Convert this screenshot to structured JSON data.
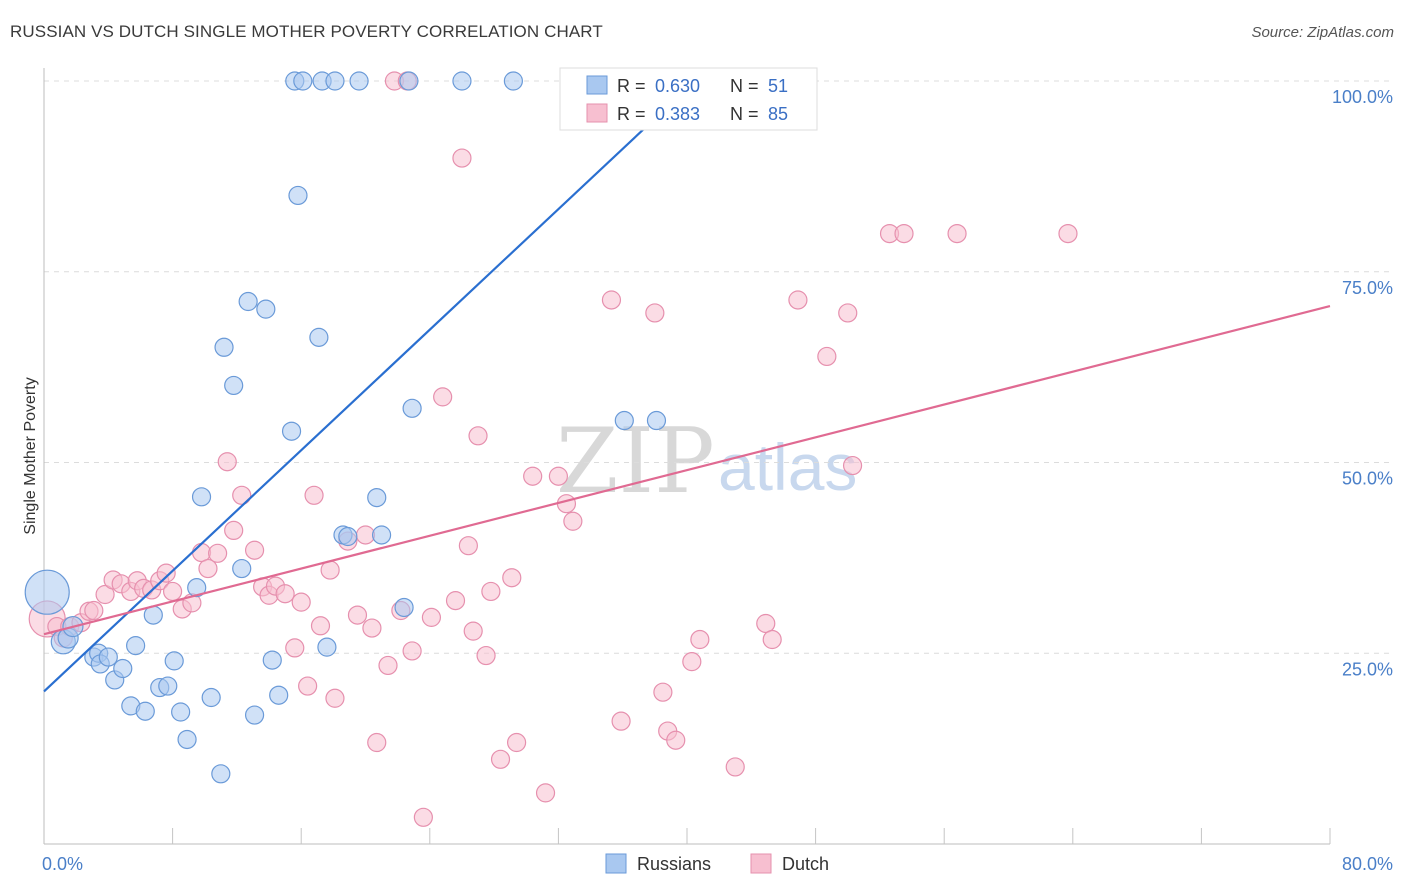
{
  "header": {
    "title": "RUSSIAN VS DUTCH SINGLE MOTHER POVERTY CORRELATION CHART",
    "source": "Source: ZipAtlas.com"
  },
  "watermark": {
    "zip": "ZIP",
    "atlas": "atlas"
  },
  "legend": {
    "russians": {
      "r_label": "R =",
      "r_value": "0.630",
      "n_label": "N =",
      "n_value": "51"
    },
    "dutch": {
      "r_label": "R =",
      "r_value": "0.383",
      "n_label": "N =",
      "n_value": "85"
    }
  },
  "colors": {
    "russians_fill": "#a9c8f0",
    "russians_stroke": "#6a9ad8",
    "russians_line": "#2a6fd0",
    "dutch_fill": "#f7bfd0",
    "dutch_stroke": "#e690ae",
    "dutch_line": "#e06a92"
  },
  "chart_data": {
    "type": "scatter",
    "title": "RUSSIAN VS DUTCH SINGLE MOTHER POVERTY CORRELATION CHART",
    "xlabel": "",
    "ylabel": "Single Mother Poverty",
    "xlim": [
      0,
      80
    ],
    "ylim": [
      0,
      100
    ],
    "x_tick_labels": [
      "0.0%",
      "80.0%"
    ],
    "y_ticks": [
      25,
      50,
      75,
      100
    ],
    "y_tick_labels": [
      "25.0%",
      "50.0%",
      "75.0%",
      "100.0%"
    ],
    "grid": true,
    "legend_position": "bottom",
    "series": [
      {
        "name": "Russians",
        "r": 0.63,
        "n": 51,
        "trend": {
          "x": [
            0,
            40.5
          ],
          "y": [
            20.0,
            100.0
          ]
        },
        "points": [
          [
            0.2,
            33,
            22
          ],
          [
            1.2,
            26.5,
            12
          ],
          [
            1.5,
            27,
            10
          ],
          [
            1.8,
            28.5,
            10
          ],
          [
            3.1,
            24.5,
            9
          ],
          [
            3.4,
            25,
            9
          ],
          [
            3.5,
            23.6,
            9
          ],
          [
            4.0,
            24.5,
            9
          ],
          [
            4.4,
            21.5,
            9
          ],
          [
            4.9,
            23,
            9
          ],
          [
            5.4,
            18.1,
            9
          ],
          [
            5.7,
            26,
            9
          ],
          [
            6.3,
            17.4,
            9
          ],
          [
            6.8,
            30,
            9
          ],
          [
            7.2,
            20.5,
            9
          ],
          [
            7.7,
            20.7,
            9
          ],
          [
            8.1,
            24,
            9
          ],
          [
            8.5,
            17.3,
            9
          ],
          [
            8.9,
            13.7,
            9
          ],
          [
            9.5,
            33.6,
            9
          ],
          [
            9.8,
            45.5,
            9
          ],
          [
            10.4,
            19.2,
            9
          ],
          [
            11.0,
            9.2,
            9
          ],
          [
            11.2,
            65.1,
            9
          ],
          [
            11.8,
            60.1,
            9
          ],
          [
            12.3,
            36.1,
            9
          ],
          [
            12.7,
            71.1,
            9
          ],
          [
            13.1,
            16.9,
            9
          ],
          [
            13.8,
            70.1,
            9
          ],
          [
            14.2,
            24.1,
            9
          ],
          [
            14.6,
            19.5,
            9
          ],
          [
            15.4,
            54.1,
            9
          ],
          [
            15.6,
            100,
            9
          ],
          [
            15.8,
            85,
            9
          ],
          [
            16.1,
            100,
            9
          ],
          [
            17.1,
            66.4,
            9
          ],
          [
            17.3,
            100,
            9
          ],
          [
            17.6,
            25.8,
            9
          ],
          [
            18.1,
            100,
            9
          ],
          [
            18.6,
            40.5,
            9
          ],
          [
            18.9,
            40.3,
            9
          ],
          [
            19.6,
            100,
            9
          ],
          [
            20.7,
            45.4,
            9
          ],
          [
            21.0,
            40.5,
            9
          ],
          [
            22.4,
            31,
            9
          ],
          [
            22.7,
            100,
            9
          ],
          [
            22.9,
            57.1,
            9
          ],
          [
            26.0,
            100,
            9
          ],
          [
            29.2,
            100,
            9
          ],
          [
            36.1,
            55.5,
            9
          ],
          [
            38.1,
            55.5,
            9
          ]
        ]
      },
      {
        "name": "Dutch",
        "r": 0.383,
        "n": 85,
        "trend": {
          "x": [
            0,
            80
          ],
          "y": [
            27.5,
            70.5
          ]
        },
        "points": [
          [
            0.2,
            29.5,
            18
          ],
          [
            0.8,
            28.5,
            9
          ],
          [
            1.2,
            27,
            9
          ],
          [
            1.6,
            28.5,
            9
          ],
          [
            2.3,
            29,
            9
          ],
          [
            2.8,
            30.5,
            9
          ],
          [
            3.1,
            30.6,
            9
          ],
          [
            3.8,
            32.7,
            9
          ],
          [
            4.3,
            34.6,
            9
          ],
          [
            4.8,
            34.1,
            9
          ],
          [
            5.4,
            33.1,
            9
          ],
          [
            5.8,
            34.5,
            9
          ],
          [
            6.2,
            33.5,
            9
          ],
          [
            6.7,
            33.3,
            9
          ],
          [
            7.2,
            34.5,
            9
          ],
          [
            7.6,
            35.5,
            9
          ],
          [
            8.0,
            33.1,
            9
          ],
          [
            8.6,
            30.8,
            9
          ],
          [
            9.2,
            31.6,
            9
          ],
          [
            9.8,
            38.2,
            9
          ],
          [
            10.2,
            36.1,
            9
          ],
          [
            10.8,
            38.1,
            9
          ],
          [
            11.4,
            50.1,
            9
          ],
          [
            11.8,
            41.1,
            9
          ],
          [
            12.3,
            45.7,
            9
          ],
          [
            13.1,
            38.5,
            9
          ],
          [
            13.6,
            33.7,
            9
          ],
          [
            14.0,
            32.6,
            9
          ],
          [
            14.4,
            33.8,
            9
          ],
          [
            15.0,
            32.8,
            9
          ],
          [
            15.6,
            25.7,
            9
          ],
          [
            16.0,
            31.7,
            9
          ],
          [
            16.4,
            20.7,
            9
          ],
          [
            16.8,
            45.7,
            9
          ],
          [
            17.2,
            28.6,
            9
          ],
          [
            17.8,
            35.9,
            9
          ],
          [
            18.1,
            19.1,
            9
          ],
          [
            18.9,
            39.7,
            9
          ],
          [
            19.5,
            30,
            9
          ],
          [
            20.0,
            40.5,
            9
          ],
          [
            20.4,
            28.3,
            9
          ],
          [
            20.7,
            13.3,
            9
          ],
          [
            21.4,
            23.4,
            9
          ],
          [
            21.8,
            100,
            9
          ],
          [
            22.2,
            30.6,
            9
          ],
          [
            22.6,
            100,
            9
          ],
          [
            22.9,
            25.3,
            9
          ],
          [
            23.6,
            3.5,
            9
          ],
          [
            24.1,
            29.7,
            9
          ],
          [
            24.8,
            58.6,
            9
          ],
          [
            25.6,
            31.9,
            9
          ],
          [
            26.0,
            89.9,
            9
          ],
          [
            26.4,
            39.1,
            9
          ],
          [
            26.7,
            27.9,
            9
          ],
          [
            27.0,
            53.5,
            9
          ],
          [
            27.5,
            24.7,
            9
          ],
          [
            27.8,
            33.1,
            9
          ],
          [
            28.4,
            11.1,
            9
          ],
          [
            29.1,
            34.9,
            9
          ],
          [
            29.4,
            13.3,
            9
          ],
          [
            30.4,
            48.2,
            9
          ],
          [
            31.2,
            6.7,
            9
          ],
          [
            32.0,
            48.2,
            9
          ],
          [
            32.5,
            44.6,
            9
          ],
          [
            32.9,
            42.3,
            9
          ],
          [
            35.3,
            71.3,
            9
          ],
          [
            35.9,
            16.1,
            9
          ],
          [
            37.6,
            100,
            9
          ],
          [
            38.0,
            69.6,
            9
          ],
          [
            38.5,
            19.9,
            9
          ],
          [
            38.8,
            14.8,
            9
          ],
          [
            39.3,
            13.6,
            9
          ],
          [
            40.3,
            23.9,
            9
          ],
          [
            40.8,
            26.8,
            9
          ],
          [
            43.0,
            10.1,
            9
          ],
          [
            44.9,
            28.9,
            9
          ],
          [
            45.3,
            26.8,
            9
          ],
          [
            46.9,
            71.3,
            9
          ],
          [
            48.7,
            63.9,
            9
          ],
          [
            50.0,
            69.6,
            9
          ],
          [
            50.3,
            49.6,
            9
          ],
          [
            52.6,
            80,
            9
          ],
          [
            53.5,
            80,
            9
          ],
          [
            56.8,
            80,
            9
          ],
          [
            63.7,
            80,
            9
          ]
        ]
      }
    ]
  }
}
